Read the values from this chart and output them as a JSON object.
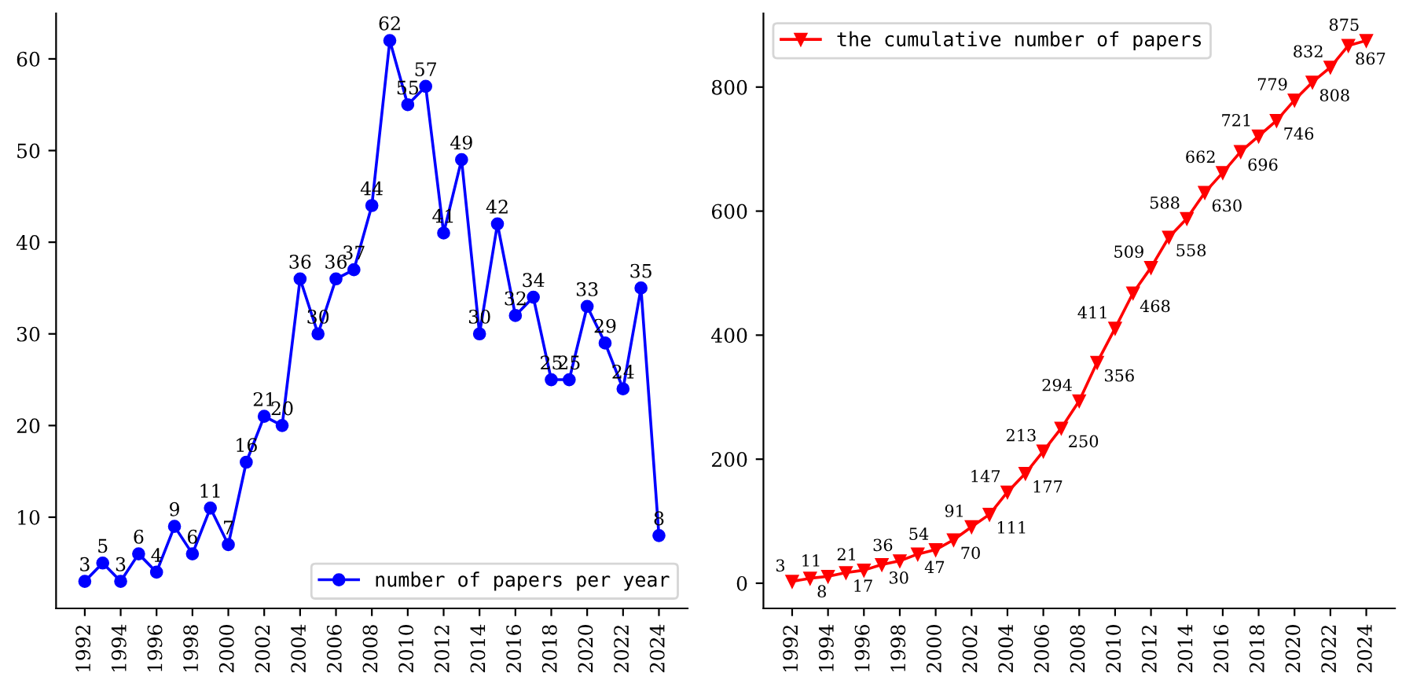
{
  "chart_data": [
    {
      "type": "line",
      "x": [
        1992,
        1993,
        1994,
        1995,
        1996,
        1997,
        1998,
        1999,
        2000,
        2001,
        2002,
        2003,
        2004,
        2005,
        2006,
        2007,
        2008,
        2009,
        2010,
        2011,
        2012,
        2013,
        2014,
        2015,
        2016,
        2017,
        2018,
        2019,
        2020,
        2021,
        2022,
        2023,
        2024
      ],
      "series": [
        {
          "name": "number of papers per year",
          "color": "#0000ff",
          "values": [
            3,
            5,
            3,
            6,
            4,
            9,
            6,
            11,
            7,
            16,
            21,
            20,
            36,
            30,
            36,
            37,
            44,
            62,
            55,
            57,
            41,
            49,
            30,
            42,
            32,
            34,
            25,
            25,
            33,
            29,
            24,
            35,
            8
          ]
        }
      ],
      "xlim": [
        1990.4,
        2025.6
      ],
      "xticks": [
        1992,
        1994,
        1996,
        1998,
        2000,
        2002,
        2004,
        2006,
        2008,
        2010,
        2012,
        2014,
        2016,
        2018,
        2020,
        2022,
        2024
      ],
      "ylim": [
        0.05,
        64.95
      ],
      "yticks": [
        10,
        20,
        30,
        40,
        50,
        60
      ],
      "marker": "circle",
      "data_labels": true,
      "legend": "bottom right",
      "grid": false
    },
    {
      "type": "line",
      "x": [
        1992,
        1993,
        1994,
        1995,
        1996,
        1997,
        1998,
        1999,
        2000,
        2001,
        2002,
        2003,
        2004,
        2005,
        2006,
        2007,
        2008,
        2009,
        2010,
        2011,
        2012,
        2013,
        2014,
        2015,
        2016,
        2017,
        2018,
        2019,
        2020,
        2021,
        2022,
        2023,
        2024
      ],
      "series": [
        {
          "name": "the cumulative number of papers",
          "color": "#ff0000",
          "values": [
            3,
            8,
            11,
            17,
            21,
            30,
            36,
            47,
            54,
            70,
            91,
            111,
            147,
            177,
            213,
            250,
            294,
            356,
            411,
            468,
            509,
            558,
            588,
            630,
            662,
            696,
            721,
            746,
            779,
            808,
            832,
            867,
            875
          ]
        }
      ],
      "xlim": [
        1990.4,
        2025.6
      ],
      "xticks": [
        1992,
        1994,
        1996,
        1998,
        2000,
        2002,
        2004,
        2006,
        2008,
        2010,
        2012,
        2014,
        2016,
        2018,
        2020,
        2022,
        2024
      ],
      "ylim": [
        -40.6,
        918.6
      ],
      "yticks": [
        0,
        200,
        400,
        600,
        800
      ],
      "marker": "triangle",
      "data_labels": true,
      "legend": "top left",
      "grid": false
    }
  ]
}
